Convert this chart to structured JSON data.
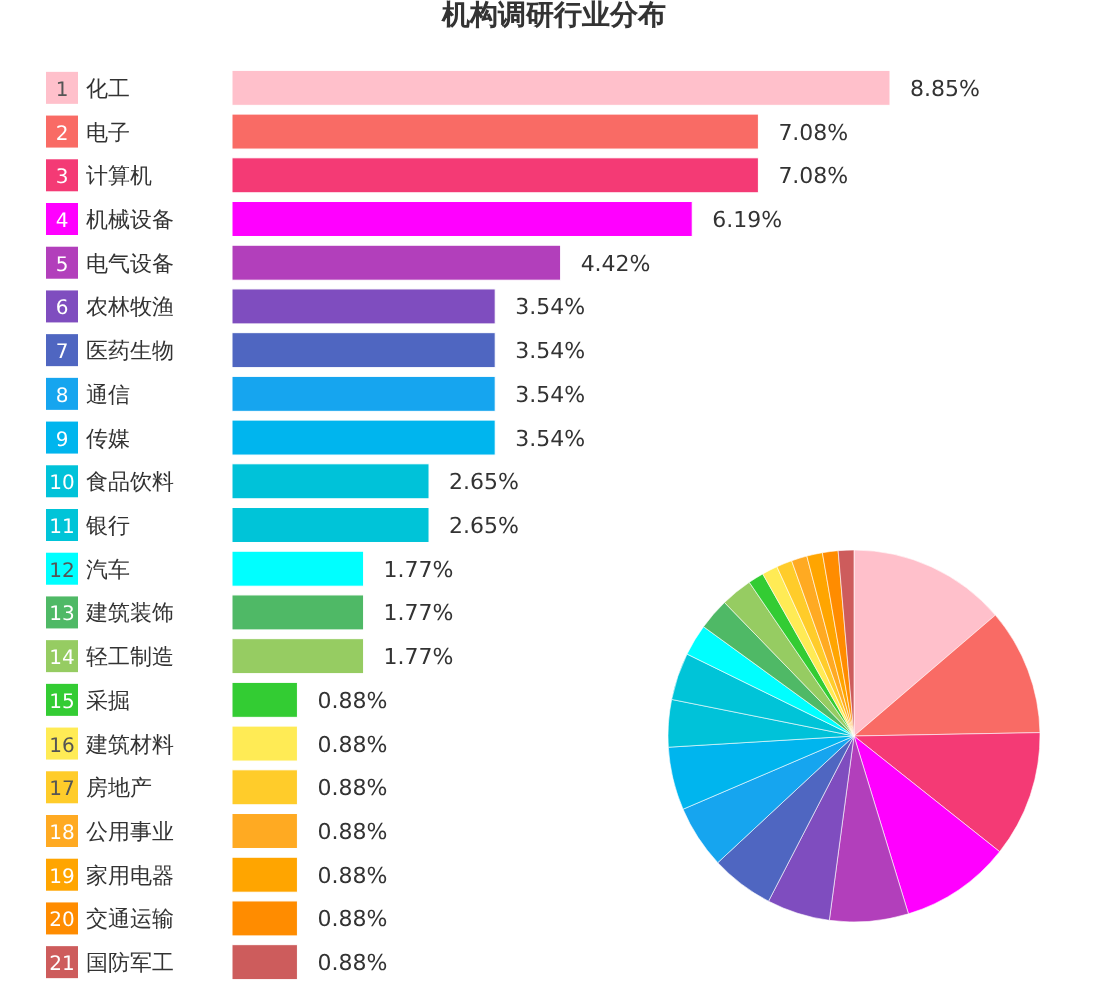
{
  "chart_data": [
    {
      "type": "bar",
      "orientation": "horizontal",
      "title": "机构调研行业分布",
      "categories": [
        "化工",
        "电子",
        "计算机",
        "机械设备",
        "电气设备",
        "农林牧渔",
        "医药生物",
        "通信",
        "传媒",
        "食品饮料",
        "银行",
        "汽车",
        "建筑装饰",
        "轻工制造",
        "采掘",
        "建筑材料",
        "房地产",
        "公用事业",
        "家用电器",
        "交通运输",
        "国防军工"
      ],
      "values": [
        8.85,
        7.08,
        7.08,
        6.19,
        4.42,
        3.54,
        3.54,
        3.54,
        3.54,
        2.65,
        2.65,
        1.77,
        1.77,
        1.77,
        0.88,
        0.88,
        0.88,
        0.88,
        0.88,
        0.88,
        0.88
      ],
      "value_labels": [
        "8.85%",
        "7.08%",
        "7.08%",
        "6.19%",
        "4.42%",
        "3.54%",
        "3.54%",
        "3.54%",
        "3.54%",
        "2.65%",
        "2.65%",
        "1.77%",
        "1.77%",
        "1.77%",
        "0.88%",
        "0.88%",
        "0.88%",
        "0.88%",
        "0.88%",
        "0.88%",
        "0.88%"
      ],
      "annotations": [
        "1",
        "2",
        "3",
        "4",
        "5",
        "6",
        "7",
        "8",
        "9",
        "10",
        "11",
        "12",
        "13",
        "14",
        "15",
        "16",
        "17",
        "18",
        "19",
        "20",
        "21"
      ],
      "colors": [
        "#ffc0cb",
        "#f96b65",
        "#f43a75",
        "#ff00ff",
        "#b23fbb",
        "#7f4dbf",
        "#4f66c1",
        "#16a5ef",
        "#00b5ee",
        "#00c2d9",
        "#00c4d8",
        "#00ffff",
        "#4fb966",
        "#96cc62",
        "#33cc33",
        "#ffeb55",
        "#ffcc2a",
        "#ffaa22",
        "#ffa500",
        "#ff8c00",
        "#cd5c5c"
      ]
    },
    {
      "type": "pie",
      "categories": [
        null,
        null,
        null,
        null,
        null,
        null,
        null,
        null,
        null,
        null,
        null,
        null,
        null,
        null,
        null,
        null,
        null,
        null,
        null,
        null,
        null
      ],
      "values": [
        13.74,
        10.97,
        10.97,
        9.59,
        6.85,
        5.48,
        5.48,
        5.48,
        5.48,
        4.11,
        4.11,
        2.74,
        2.74,
        2.74,
        1.36,
        1.36,
        1.36,
        1.36,
        1.36,
        1.36,
        1.36
      ],
      "colors": [
        "#ffc0cb",
        "#f96b65",
        "#f43a75",
        "#ff00ff",
        "#b23fbb",
        "#7f4dbf",
        "#4f66c1",
        "#16a5ef",
        "#00b5ee",
        "#00c2d9",
        "#00c4d8",
        "#00ffff",
        "#4fb966",
        "#96cc62",
        "#33cc33",
        "#ffeb55",
        "#ffcc2a",
        "#ffaa22",
        "#ffa500",
        "#ff8c00",
        "#cd5c5c"
      ]
    }
  ]
}
